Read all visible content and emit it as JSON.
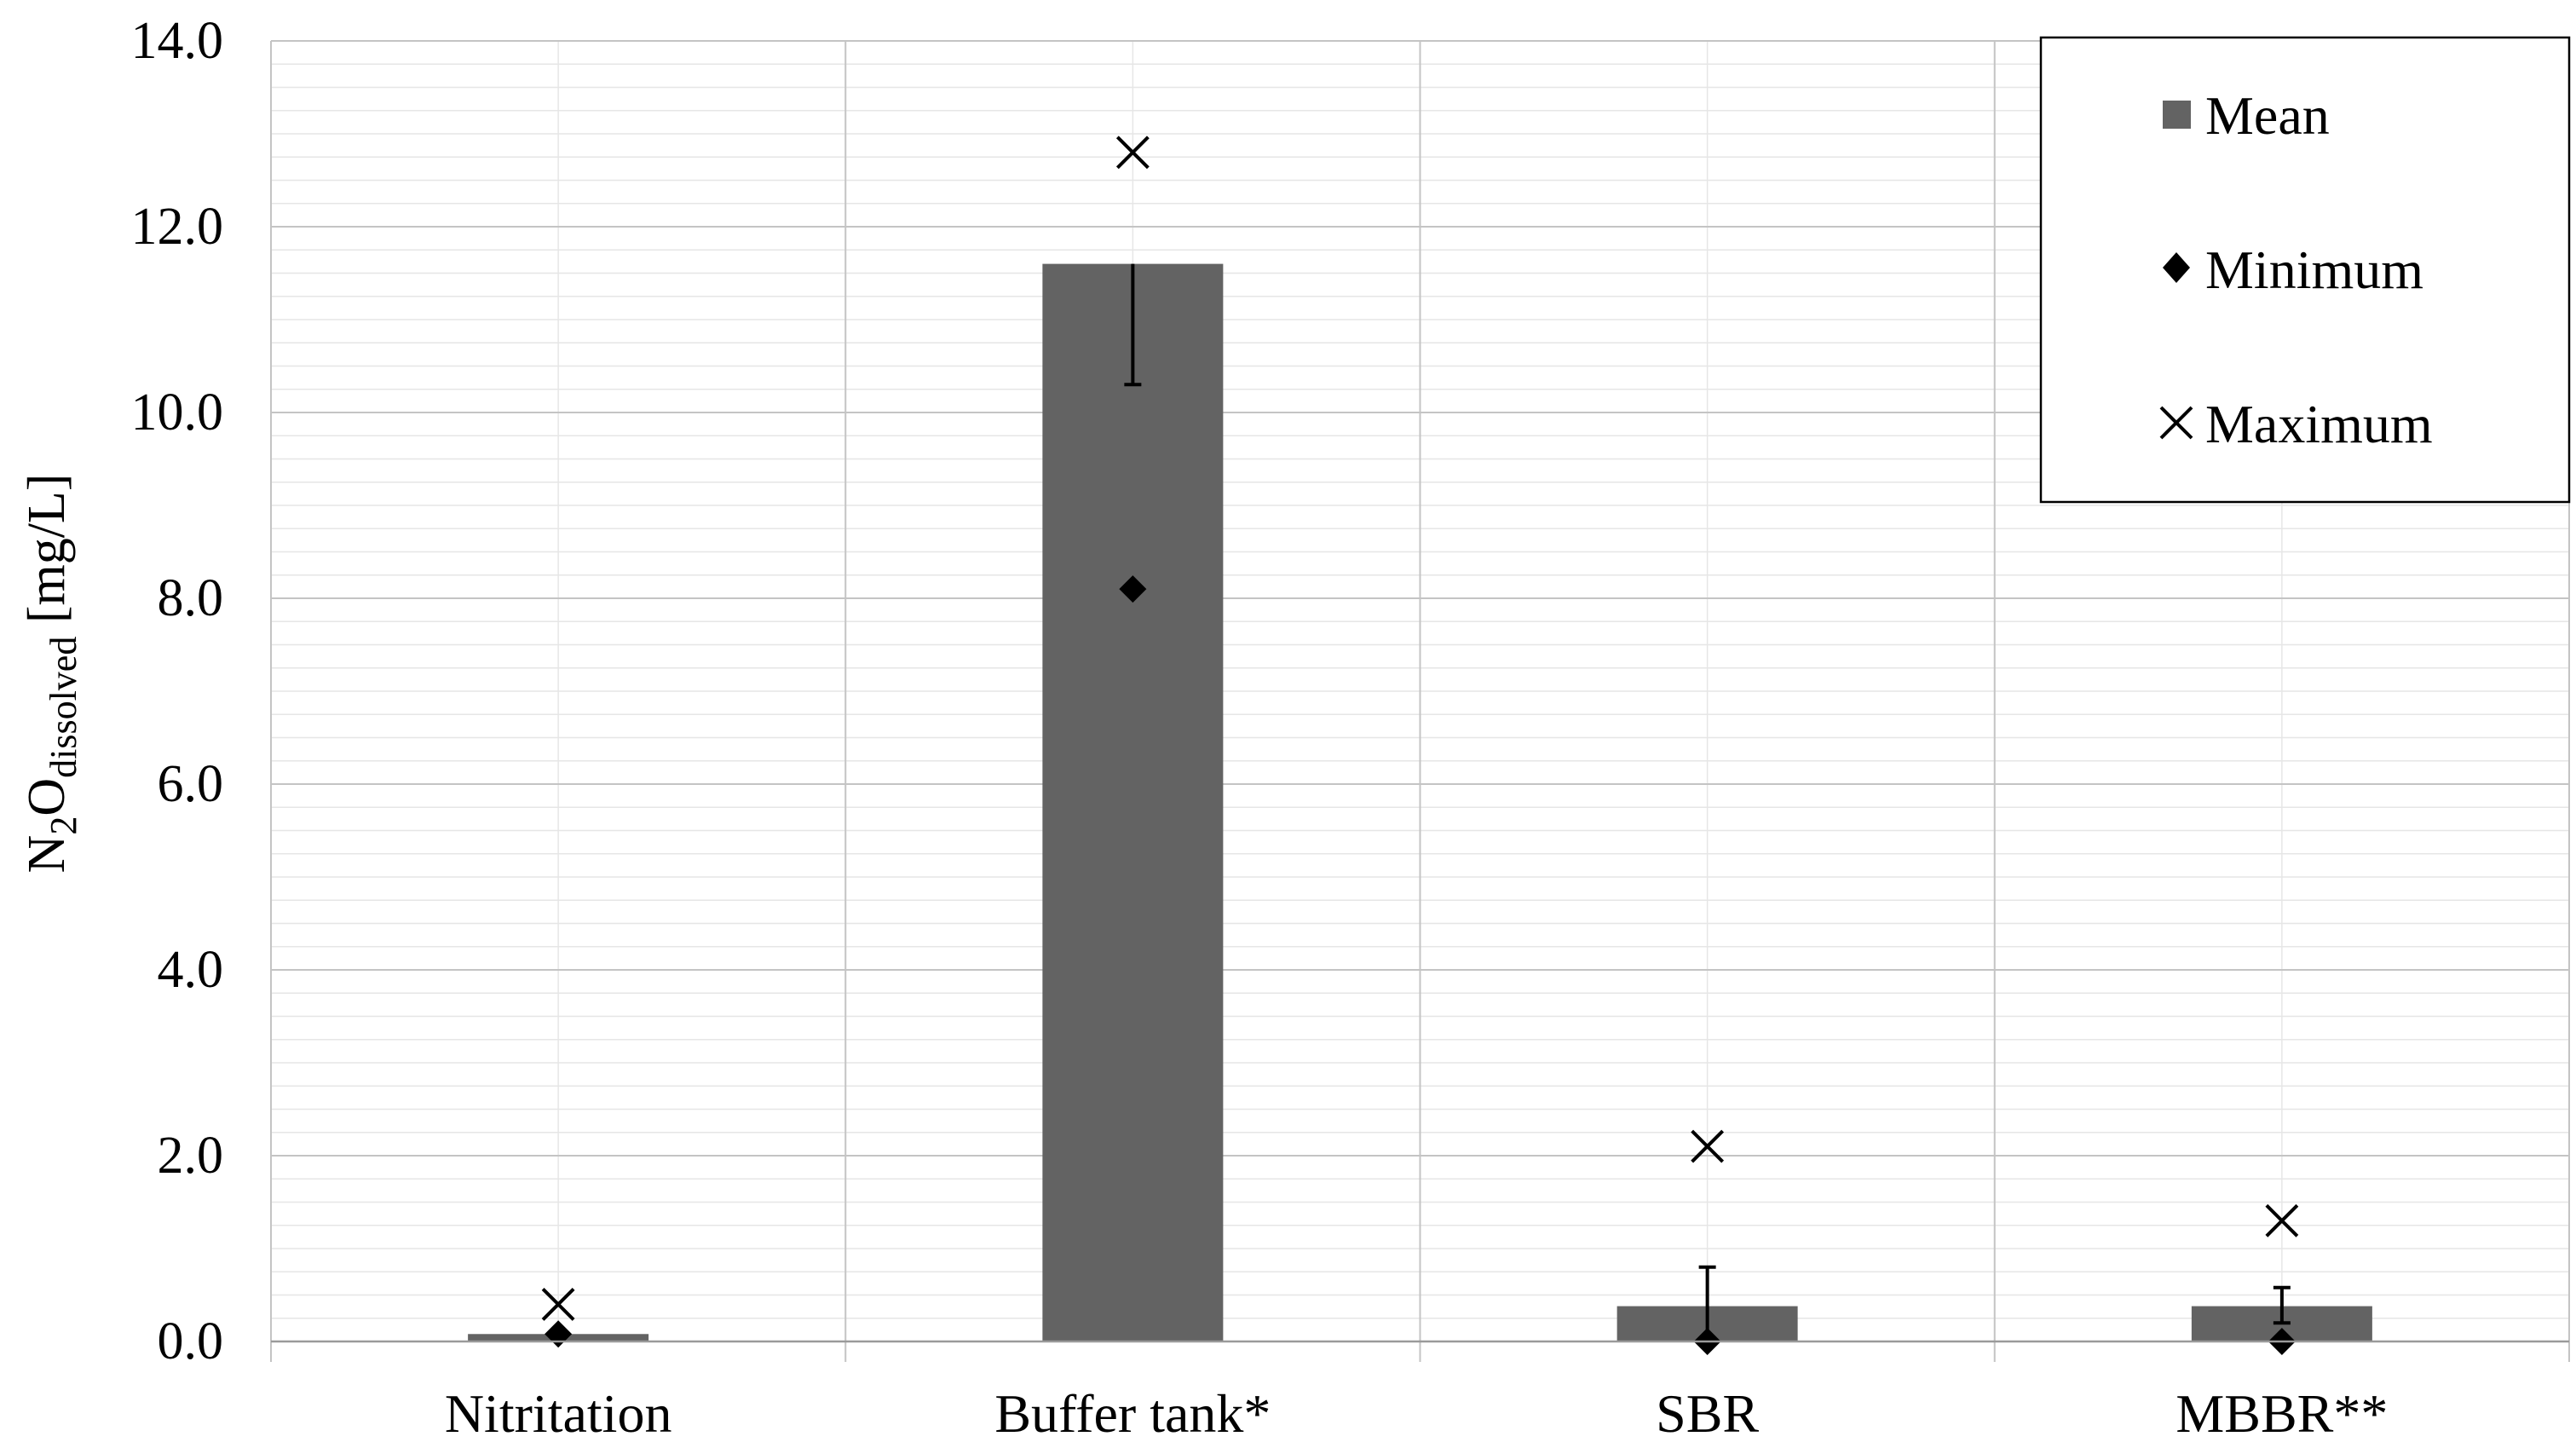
{
  "chart_data": {
    "type": "bar",
    "categories": [
      "Nitritation",
      "Buffer tank*",
      "SBR",
      "MBBR**"
    ],
    "ylabel": "N2Odissolved [mg/L]",
    "ylabel_parts": {
      "pre": "N",
      "sub1": "2",
      "mid": "O",
      "sub2": "dissolved",
      "post": " [mg/L]"
    },
    "ylim": [
      0,
      14
    ],
    "yticks": [
      "0.0",
      "2.0",
      "4.0",
      "6.0",
      "8.0",
      "10.0",
      "12.0",
      "14.0"
    ],
    "grid": true,
    "legend_position": "top-right",
    "series": [
      {
        "name": "Mean",
        "kind": "bar",
        "values": [
          0.08,
          11.6,
          0.38,
          0.38
        ],
        "error_plus": [
          0,
          0,
          0.42,
          0.2
        ],
        "error_minus": [
          0,
          1.3,
          0.38,
          0.18
        ]
      },
      {
        "name": "Minimum",
        "kind": "marker-diamond",
        "values": [
          0.08,
          8.1,
          0.0,
          0.0
        ]
      },
      {
        "name": "Maximum",
        "kind": "marker-x",
        "values": [
          0.4,
          12.8,
          2.1,
          1.3
        ]
      }
    ],
    "colors": {
      "bar": "#636363",
      "marker": "#000000",
      "grid_major": "#c4c4c4",
      "grid_minor": "#e6e6e6"
    }
  }
}
